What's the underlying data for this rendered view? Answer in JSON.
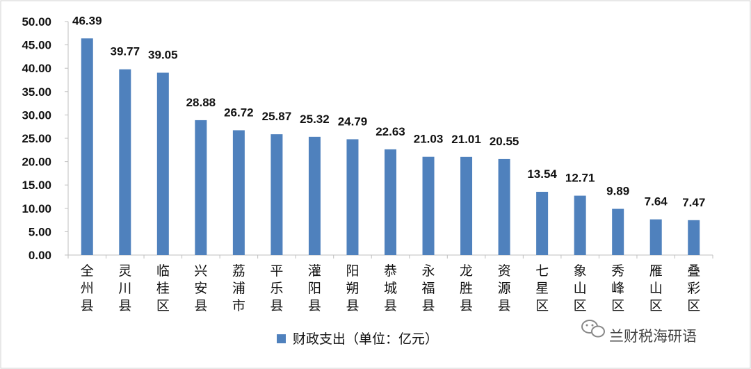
{
  "chart_data": {
    "type": "bar",
    "categories": [
      "全州县",
      "灵川县",
      "临桂区",
      "兴安县",
      "荔浦市",
      "平乐县",
      "灌阳县",
      "阳朔县",
      "恭城县",
      "永福县",
      "龙胜县",
      "资源县",
      "七星区",
      "象山区",
      "秀峰区",
      "雁山区",
      "叠彩区"
    ],
    "series": [
      {
        "name": "财政支出（单位：亿元）",
        "values": [
          46.39,
          39.77,
          39.05,
          28.88,
          26.72,
          25.87,
          25.32,
          24.79,
          22.63,
          21.03,
          21.01,
          20.55,
          13.54,
          12.71,
          9.89,
          7.64,
          7.47
        ],
        "color": "#4F81BD"
      }
    ],
    "value_labels": [
      "46.39",
      "39.77",
      "39.05",
      "28.88",
      "26.72",
      "25.87",
      "25.32",
      "24.79",
      "22.63",
      "21.03",
      "21.01",
      "20.55",
      "13.54",
      "12.71",
      "9.89",
      "7.64",
      "7.47"
    ],
    "yticks": [
      "0.00",
      "5.00",
      "10.00",
      "15.00",
      "20.00",
      "25.00",
      "30.00",
      "35.00",
      "40.00",
      "45.00",
      "50.00"
    ],
    "ylim": [
      0,
      50
    ],
    "title": "",
    "xlabel": "",
    "ylabel": "",
    "grid": false,
    "legend_position": "bottom"
  },
  "watermark": {
    "text": "兰财税海研语",
    "icon": "wechat-icon"
  }
}
